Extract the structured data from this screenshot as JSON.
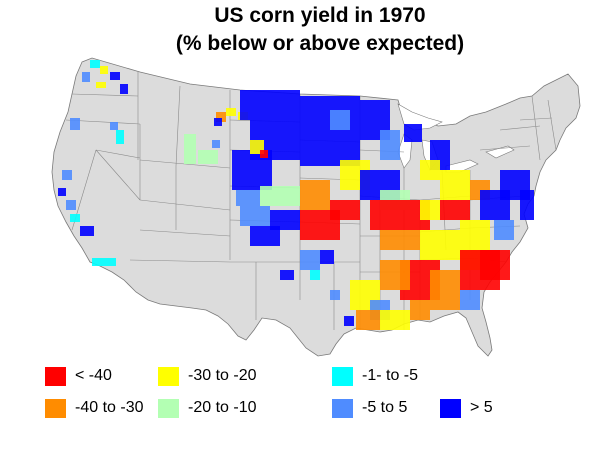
{
  "title": {
    "line1": "US corn yield in 1970",
    "line2": "(% below or above expected)"
  },
  "legend": [
    {
      "label": "< -40",
      "color": "#ff0000"
    },
    {
      "label": "-40 to -30",
      "color": "#ff8c00"
    },
    {
      "label": "-30 to -20",
      "color": "#ffff00"
    },
    {
      "label": "-20 to -10",
      "color": "#b3ffb3"
    },
    {
      "label": "-1- to -5",
      "color": "#00ffff"
    },
    {
      "label": "-5 to 5",
      "color": "#4f8cff"
    },
    {
      "label": "> 5",
      "color": "#0000ff"
    }
  ],
  "map": {
    "land_color": "#dcdcdc",
    "border_color": "#7a7a7a",
    "no_data_color": "#dcdcdc"
  }
}
